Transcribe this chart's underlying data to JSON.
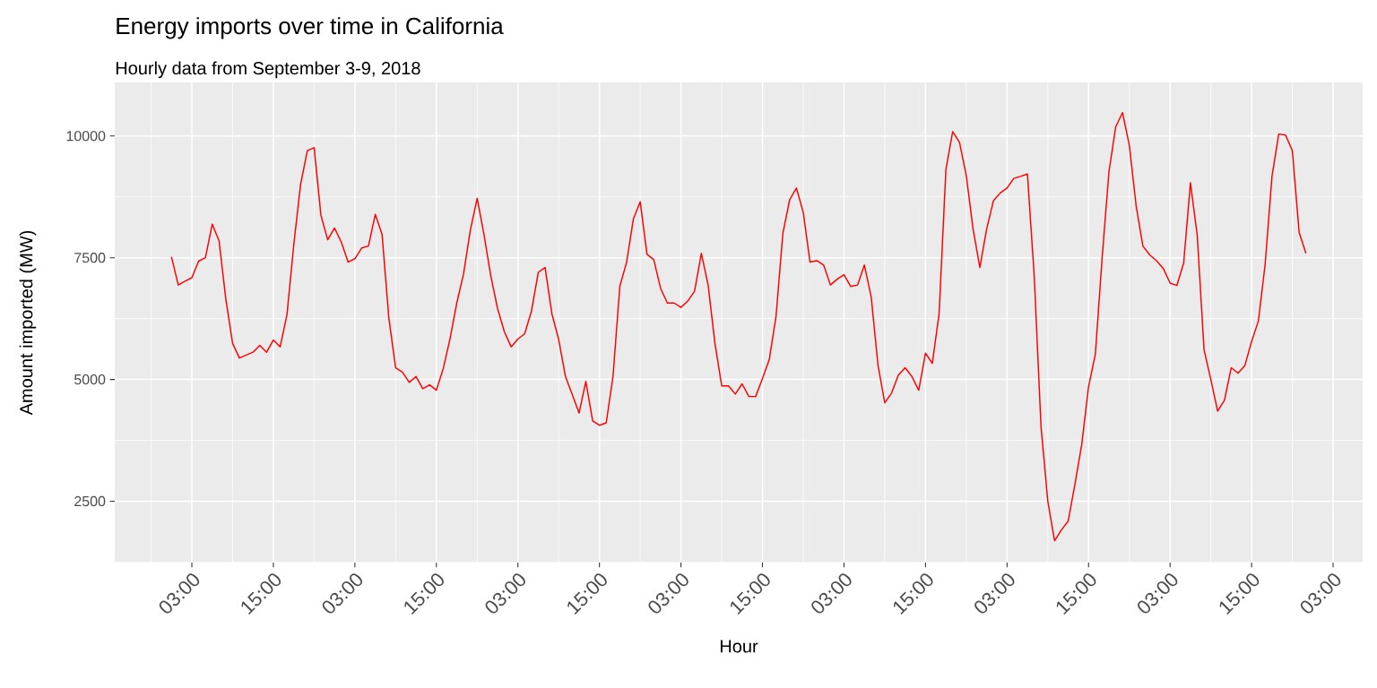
{
  "chart_data": {
    "type": "line",
    "title": "Energy imports over time in California",
    "subtitle": "Hourly data from September 3-9, 2018",
    "xlabel": "Hour",
    "ylabel": "Amount imported (MW)",
    "x": [
      "2018-09-03T00:00",
      "2018-09-03T01:00",
      "2018-09-03T02:00",
      "2018-09-03T03:00",
      "2018-09-03T04:00",
      "2018-09-03T05:00",
      "2018-09-03T06:00",
      "2018-09-03T07:00",
      "2018-09-03T08:00",
      "2018-09-03T09:00",
      "2018-09-03T10:00",
      "2018-09-03T11:00",
      "2018-09-03T12:00",
      "2018-09-03T13:00",
      "2018-09-03T14:00",
      "2018-09-03T15:00",
      "2018-09-03T16:00",
      "2018-09-03T17:00",
      "2018-09-03T18:00",
      "2018-09-03T19:00",
      "2018-09-03T20:00",
      "2018-09-03T21:00",
      "2018-09-03T22:00",
      "2018-09-03T23:00",
      "2018-09-04T00:00",
      "2018-09-04T01:00",
      "2018-09-04T02:00",
      "2018-09-04T03:00",
      "2018-09-04T04:00",
      "2018-09-04T05:00",
      "2018-09-04T06:00",
      "2018-09-04T07:00",
      "2018-09-04T08:00",
      "2018-09-04T09:00",
      "2018-09-04T10:00",
      "2018-09-04T11:00",
      "2018-09-04T12:00",
      "2018-09-04T13:00",
      "2018-09-04T14:00",
      "2018-09-04T15:00",
      "2018-09-04T16:00",
      "2018-09-04T17:00",
      "2018-09-04T18:00",
      "2018-09-04T19:00",
      "2018-09-04T20:00",
      "2018-09-04T21:00",
      "2018-09-04T22:00",
      "2018-09-04T23:00",
      "2018-09-05T00:00",
      "2018-09-05T01:00",
      "2018-09-05T02:00",
      "2018-09-05T03:00",
      "2018-09-05T04:00",
      "2018-09-05T05:00",
      "2018-09-05T06:00",
      "2018-09-05T07:00",
      "2018-09-05T08:00",
      "2018-09-05T09:00",
      "2018-09-05T10:00",
      "2018-09-05T11:00",
      "2018-09-05T12:00",
      "2018-09-05T13:00",
      "2018-09-05T14:00",
      "2018-09-05T15:00",
      "2018-09-05T16:00",
      "2018-09-05T17:00",
      "2018-09-05T18:00",
      "2018-09-05T19:00",
      "2018-09-05T20:00",
      "2018-09-05T21:00",
      "2018-09-05T22:00",
      "2018-09-05T23:00",
      "2018-09-06T00:00",
      "2018-09-06T01:00",
      "2018-09-06T02:00",
      "2018-09-06T03:00",
      "2018-09-06T04:00",
      "2018-09-06T05:00",
      "2018-09-06T06:00",
      "2018-09-06T07:00",
      "2018-09-06T08:00",
      "2018-09-06T09:00",
      "2018-09-06T10:00",
      "2018-09-06T11:00",
      "2018-09-06T12:00",
      "2018-09-06T13:00",
      "2018-09-06T14:00",
      "2018-09-06T15:00",
      "2018-09-06T16:00",
      "2018-09-06T17:00",
      "2018-09-06T18:00",
      "2018-09-06T19:00",
      "2018-09-06T20:00",
      "2018-09-06T21:00",
      "2018-09-06T22:00",
      "2018-09-06T23:00",
      "2018-09-07T00:00",
      "2018-09-07T01:00",
      "2018-09-07T02:00",
      "2018-09-07T03:00",
      "2018-09-07T04:00",
      "2018-09-07T05:00",
      "2018-09-07T06:00",
      "2018-09-07T07:00",
      "2018-09-07T08:00",
      "2018-09-07T09:00",
      "2018-09-07T10:00",
      "2018-09-07T11:00",
      "2018-09-07T12:00",
      "2018-09-07T13:00",
      "2018-09-07T14:00",
      "2018-09-07T15:00",
      "2018-09-07T16:00",
      "2018-09-07T17:00",
      "2018-09-07T18:00",
      "2018-09-07T19:00",
      "2018-09-07T20:00",
      "2018-09-07T21:00",
      "2018-09-07T22:00",
      "2018-09-07T23:00",
      "2018-09-08T00:00",
      "2018-09-08T01:00",
      "2018-09-08T02:00",
      "2018-09-08T03:00",
      "2018-09-08T04:00",
      "2018-09-08T05:00",
      "2018-09-08T06:00",
      "2018-09-08T07:00",
      "2018-09-08T08:00",
      "2018-09-08T09:00",
      "2018-09-08T10:00",
      "2018-09-08T11:00",
      "2018-09-08T12:00",
      "2018-09-08T13:00",
      "2018-09-08T14:00",
      "2018-09-08T15:00",
      "2018-09-08T16:00",
      "2018-09-08T17:00",
      "2018-09-08T18:00",
      "2018-09-08T19:00",
      "2018-09-08T20:00",
      "2018-09-08T21:00",
      "2018-09-08T22:00",
      "2018-09-08T23:00",
      "2018-09-09T00:00",
      "2018-09-09T01:00",
      "2018-09-09T02:00",
      "2018-09-09T03:00",
      "2018-09-09T04:00",
      "2018-09-09T05:00",
      "2018-09-09T06:00",
      "2018-09-09T07:00",
      "2018-09-09T08:00",
      "2018-09-09T09:00",
      "2018-09-09T10:00",
      "2018-09-09T11:00",
      "2018-09-09T12:00",
      "2018-09-09T13:00",
      "2018-09-09T14:00",
      "2018-09-09T15:00",
      "2018-09-09T16:00",
      "2018-09-09T17:00",
      "2018-09-09T18:00",
      "2018-09-09T19:00",
      "2018-09-09T20:00",
      "2018-09-09T21:00",
      "2018-09-09T22:00",
      "2018-09-09T23:00"
    ],
    "values": [
      7520,
      6940,
      7020,
      7090,
      7430,
      7500,
      8190,
      7850,
      6650,
      5740,
      5440,
      5500,
      5560,
      5700,
      5560,
      5810,
      5670,
      6330,
      7760,
      9000,
      9700,
      9760,
      8370,
      7870,
      8110,
      7820,
      7410,
      7480,
      7700,
      7740,
      8390,
      7980,
      6260,
      5240,
      5150,
      4940,
      5060,
      4810,
      4890,
      4780,
      5220,
      5830,
      6570,
      7170,
      8070,
      8720,
      7980,
      7130,
      6460,
      5980,
      5670,
      5830,
      5940,
      6410,
      7200,
      7300,
      6350,
      5820,
      5060,
      4690,
      4310,
      4960,
      4150,
      4060,
      4110,
      5070,
      6910,
      7410,
      8300,
      8650,
      7570,
      7460,
      6870,
      6570,
      6570,
      6480,
      6610,
      6810,
      7590,
      6940,
      5740,
      4870,
      4870,
      4700,
      4910,
      4650,
      4650,
      5020,
      5410,
      6300,
      8000,
      8690,
      8930,
      8430,
      7410,
      7440,
      7350,
      6940,
      7060,
      7150,
      6910,
      6940,
      7350,
      6700,
      5300,
      4520,
      4720,
      5090,
      5240,
      5060,
      4780,
      5540,
      5330,
      6350,
      9310,
      10090,
      9870,
      9190,
      8090,
      7300,
      8090,
      8670,
      8830,
      8930,
      9130,
      9170,
      9220,
      7130,
      4040,
      2500,
      1690,
      1910,
      2090,
      2850,
      3670,
      4850,
      5520,
      7500,
      9260,
      10190,
      10480,
      9810,
      8570,
      7740,
      7560,
      7440,
      7280,
      6980,
      6930,
      7390,
      9040,
      7960,
      5610,
      5000,
      4350,
      4570,
      5240,
      5130,
      5280,
      5780,
      6200,
      7370,
      9170,
      10040,
      10020,
      9700,
      8020,
      7590
    ],
    "color": "#ff0000",
    "xlim": [
      "2018-09-02T15:39",
      "2018-09-10T07:21"
    ],
    "ylim": [
      1240,
      11100
    ],
    "xticks": [
      {
        "value": "2018-09-03T03:00",
        "label": "03:00"
      },
      {
        "value": "2018-09-03T15:00",
        "label": "15:00"
      },
      {
        "value": "2018-09-04T03:00",
        "label": "03:00"
      },
      {
        "value": "2018-09-04T15:00",
        "label": "15:00"
      },
      {
        "value": "2018-09-05T03:00",
        "label": "03:00"
      },
      {
        "value": "2018-09-05T15:00",
        "label": "15:00"
      },
      {
        "value": "2018-09-06T03:00",
        "label": "03:00"
      },
      {
        "value": "2018-09-06T15:00",
        "label": "15:00"
      },
      {
        "value": "2018-09-07T03:00",
        "label": "03:00"
      },
      {
        "value": "2018-09-07T15:00",
        "label": "15:00"
      },
      {
        "value": "2018-09-08T03:00",
        "label": "03:00"
      },
      {
        "value": "2018-09-08T15:00",
        "label": "15:00"
      },
      {
        "value": "2018-09-09T03:00",
        "label": "03:00"
      },
      {
        "value": "2018-09-09T15:00",
        "label": "15:00"
      },
      {
        "value": "2018-09-10T03:00",
        "label": "03:00"
      }
    ],
    "yticks": [
      2500,
      5000,
      7500,
      10000
    ],
    "grid": true
  }
}
